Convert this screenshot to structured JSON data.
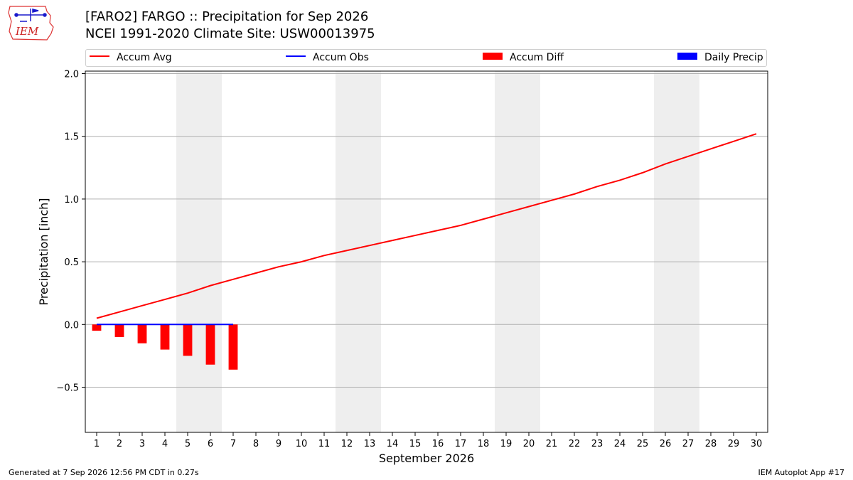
{
  "header": {
    "logo_text": "IEM",
    "title_line1": "[FARO2] FARGO :: Precipitation for Sep 2026",
    "title_line2": "NCEI 1991-2020 Climate Site: USW00013975"
  },
  "legend": [
    {
      "label": "Accum Avg",
      "color": "#ff0000",
      "kind": "line"
    },
    {
      "label": "Accum Obs",
      "color": "#0000ff",
      "kind": "line"
    },
    {
      "label": "Accum Diff",
      "color": "#ff0000",
      "kind": "box"
    },
    {
      "label": "Daily Precip",
      "color": "#0000ff",
      "kind": "box"
    }
  ],
  "chart_data": {
    "type": "line",
    "xlabel": "September 2026",
    "ylabel": "Precipitation [inch]",
    "xlim": [
      0.5,
      30.5
    ],
    "ylim": [
      -0.86,
      2.02
    ],
    "yticks": [
      -0.5,
      0.0,
      0.5,
      1.0,
      1.5,
      2.0
    ],
    "ytick_labels": [
      "−0.5",
      "0.0",
      "0.5",
      "1.0",
      "1.5",
      "2.0"
    ],
    "xticks": [
      1,
      2,
      3,
      4,
      5,
      6,
      7,
      8,
      9,
      10,
      11,
      12,
      13,
      14,
      15,
      16,
      17,
      18,
      19,
      20,
      21,
      22,
      23,
      24,
      25,
      26,
      27,
      28,
      29,
      30
    ],
    "grid": "horizontal",
    "weekend_shading": [
      [
        4.5,
        6.5
      ],
      [
        11.5,
        13.5
      ],
      [
        18.5,
        20.5
      ],
      [
        25.5,
        27.5
      ]
    ],
    "shading_color": "#eeeeee",
    "series": [
      {
        "name": "Accum Avg",
        "type": "line",
        "color": "#ff0000",
        "x": [
          1,
          2,
          3,
          4,
          5,
          6,
          7,
          8,
          9,
          10,
          11,
          12,
          13,
          14,
          15,
          16,
          17,
          18,
          19,
          20,
          21,
          22,
          23,
          24,
          25,
          26,
          27,
          28,
          29,
          30
        ],
        "values": [
          0.05,
          0.1,
          0.15,
          0.2,
          0.25,
          0.31,
          0.36,
          0.41,
          0.46,
          0.5,
          0.55,
          0.59,
          0.63,
          0.67,
          0.71,
          0.75,
          0.79,
          0.84,
          0.89,
          0.94,
          0.99,
          1.04,
          1.1,
          1.15,
          1.21,
          1.28,
          1.34,
          1.4,
          1.46,
          1.52
        ]
      },
      {
        "name": "Accum Obs",
        "type": "line",
        "color": "#0000ff",
        "x": [
          1,
          2,
          3,
          4,
          5,
          6,
          7
        ],
        "values": [
          0,
          0,
          0,
          0,
          0,
          0,
          0
        ]
      },
      {
        "name": "Accum Diff",
        "type": "bar",
        "color": "#ff0000",
        "x": [
          1,
          2,
          3,
          4,
          5,
          6,
          7
        ],
        "values": [
          -0.05,
          -0.1,
          -0.15,
          -0.2,
          -0.25,
          -0.32,
          -0.36
        ]
      },
      {
        "name": "Daily Precip",
        "type": "bar",
        "color": "#0000ff",
        "x": [
          1,
          2,
          3,
          4,
          5,
          6,
          7
        ],
        "values": [
          0,
          0,
          0,
          0,
          0,
          0,
          0
        ]
      }
    ]
  },
  "footer": {
    "left": "Generated at 7 Sep 2026 12:56 PM CDT in 0.27s",
    "right": "IEM Autoplot App #17"
  }
}
